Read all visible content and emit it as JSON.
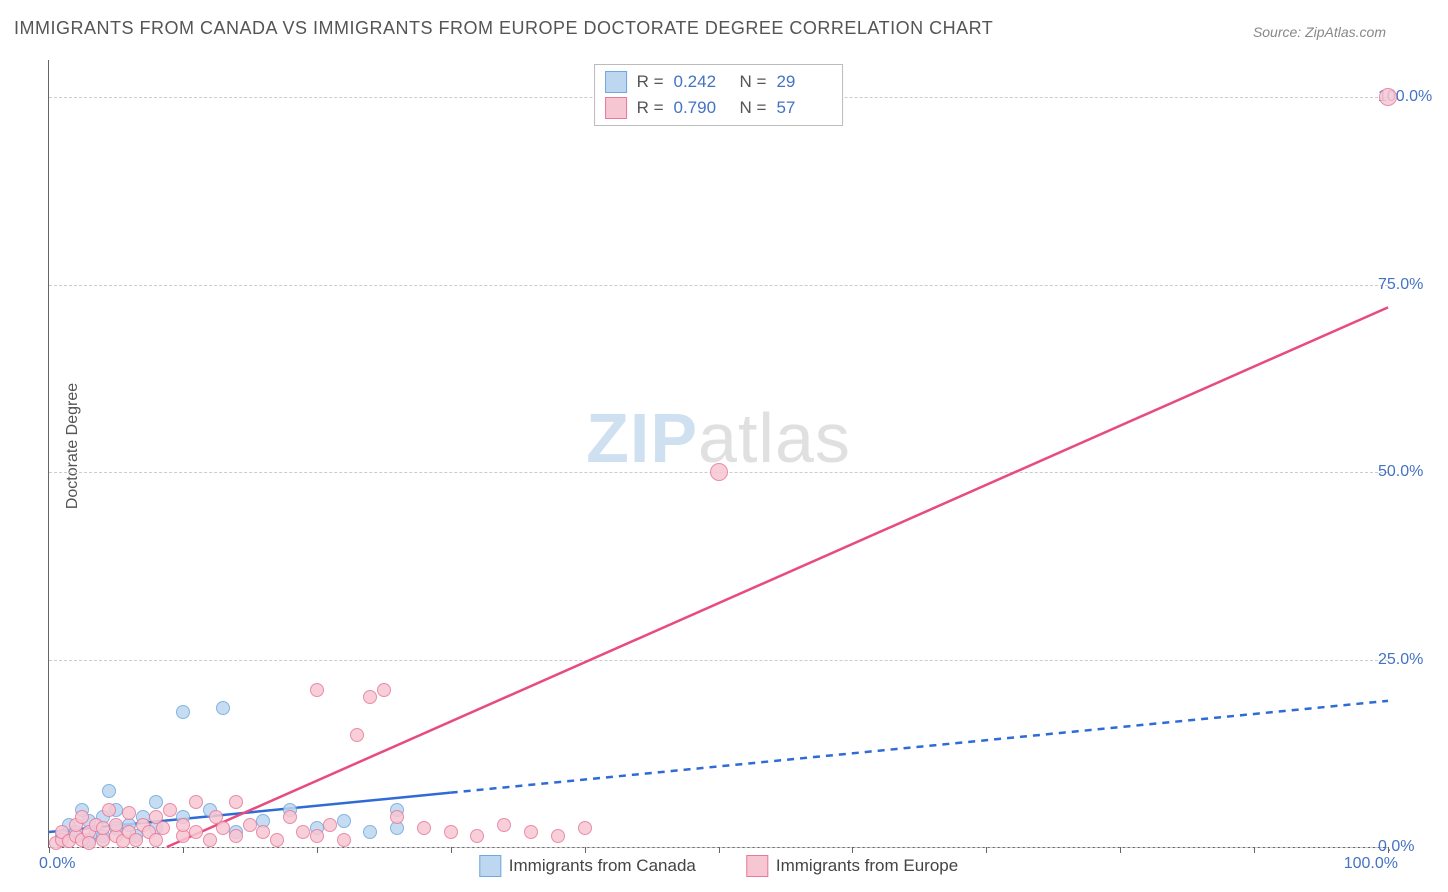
{
  "title": "IMMIGRANTS FROM CANADA VS IMMIGRANTS FROM EUROPE DOCTORATE DEGREE CORRELATION CHART",
  "source": "Source: ZipAtlas.com",
  "ylabel": "Doctorate Degree",
  "watermark_zip": "ZIP",
  "watermark_atlas": "atlas",
  "chart": {
    "type": "scatter",
    "xlim": [
      0,
      100
    ],
    "ylim": [
      0,
      105
    ],
    "background": "#ffffff",
    "grid_color": "#cccccc",
    "grid_dashed": true,
    "y_gridlines": [
      0,
      25,
      50,
      75,
      100
    ],
    "y_tick_labels": [
      "0.0%",
      "25.0%",
      "50.0%",
      "75.0%",
      "100.0%"
    ],
    "x_ticks": [
      0,
      10,
      20,
      30,
      40,
      50,
      60,
      70,
      80,
      90,
      100
    ],
    "x_tick_label_left": "0.0%",
    "x_tick_label_right": "100.0%",
    "tick_label_color": "#4472c4",
    "tick_label_fontsize": 16,
    "series": [
      {
        "name": "Immigrants from Canada",
        "marker_fill": "#bdd7f0",
        "marker_stroke": "#6fa8dc",
        "marker_opacity": 0.85,
        "line_color": "#2e6bd6",
        "line_width": 2.5,
        "line_solid_until_x": 30,
        "line_dashed": true,
        "trend_start": [
          0,
          2.0
        ],
        "trend_end": [
          100,
          19.5
        ],
        "R_label": "R =",
        "R": "0.242",
        "N_label": "N =",
        "N": "29",
        "points": [
          [
            1,
            1.5
          ],
          [
            1.5,
            3
          ],
          [
            2,
            2
          ],
          [
            2.5,
            5
          ],
          [
            3,
            1
          ],
          [
            3,
            3.5
          ],
          [
            3.5,
            2
          ],
          [
            4,
            4
          ],
          [
            4,
            1.5
          ],
          [
            4.5,
            7.5
          ],
          [
            5,
            2.5
          ],
          [
            5,
            5
          ],
          [
            6,
            3
          ],
          [
            6.5,
            1.5
          ],
          [
            7,
            4
          ],
          [
            8,
            2.5
          ],
          [
            8,
            6
          ],
          [
            10,
            4
          ],
          [
            10,
            18
          ],
          [
            12,
            5
          ],
          [
            13,
            18.5
          ],
          [
            14,
            2
          ],
          [
            16,
            3.5
          ],
          [
            18,
            5
          ],
          [
            20,
            2.5
          ],
          [
            22,
            3.5
          ],
          [
            24,
            2
          ],
          [
            26,
            2.5
          ],
          [
            26,
            5
          ]
        ]
      },
      {
        "name": "Immigrants from Europe",
        "marker_fill": "#f7c6d3",
        "marker_stroke": "#e67a9b",
        "marker_opacity": 0.85,
        "line_color": "#e84b7d",
        "line_width": 2.5,
        "line_dashed": false,
        "trend_start": [
          8.8,
          0
        ],
        "trend_end": [
          100,
          72
        ],
        "R_label": "R =",
        "R": "0.790",
        "N_label": "N =",
        "N": "57",
        "points": [
          [
            0.5,
            0.5
          ],
          [
            1,
            1
          ],
          [
            1,
            2
          ],
          [
            1.5,
            0.8
          ],
          [
            2,
            1.5
          ],
          [
            2,
            3
          ],
          [
            2.5,
            1
          ],
          [
            2.5,
            4
          ],
          [
            3,
            2
          ],
          [
            3,
            0.5
          ],
          [
            3.5,
            3
          ],
          [
            4,
            1
          ],
          [
            4,
            2.5
          ],
          [
            4.5,
            5
          ],
          [
            5,
            1.5
          ],
          [
            5,
            3
          ],
          [
            5.5,
            0.8
          ],
          [
            6,
            2
          ],
          [
            6,
            4.5
          ],
          [
            6.5,
            1
          ],
          [
            7,
            3
          ],
          [
            7.5,
            2
          ],
          [
            8,
            1
          ],
          [
            8,
            4
          ],
          [
            8.5,
            2.5
          ],
          [
            9,
            5
          ],
          [
            10,
            1.5
          ],
          [
            10,
            3
          ],
          [
            11,
            2
          ],
          [
            11,
            6
          ],
          [
            12,
            1
          ],
          [
            12.5,
            4
          ],
          [
            13,
            2.5
          ],
          [
            14,
            1.5
          ],
          [
            14,
            6
          ],
          [
            15,
            3
          ],
          [
            16,
            2
          ],
          [
            17,
            1
          ],
          [
            18,
            4
          ],
          [
            19,
            2
          ],
          [
            20,
            1.5
          ],
          [
            20,
            21
          ],
          [
            21,
            3
          ],
          [
            22,
            1
          ],
          [
            23,
            15
          ],
          [
            24,
            20
          ],
          [
            25,
            21
          ],
          [
            26,
            4
          ],
          [
            28,
            2.5
          ],
          [
            30,
            2
          ],
          [
            32,
            1.5
          ],
          [
            34,
            3
          ],
          [
            36,
            2
          ],
          [
            38,
            1.5
          ],
          [
            40,
            2.5
          ],
          [
            50,
            50
          ],
          [
            100,
            100
          ]
        ]
      }
    ]
  },
  "legend_bottom": [
    {
      "label": "Immigrants from Canada",
      "fill": "#bdd7f0",
      "stroke": "#6fa8dc"
    },
    {
      "label": "Immigrants from Europe",
      "fill": "#f7c6d3",
      "stroke": "#e67a9b"
    }
  ]
}
